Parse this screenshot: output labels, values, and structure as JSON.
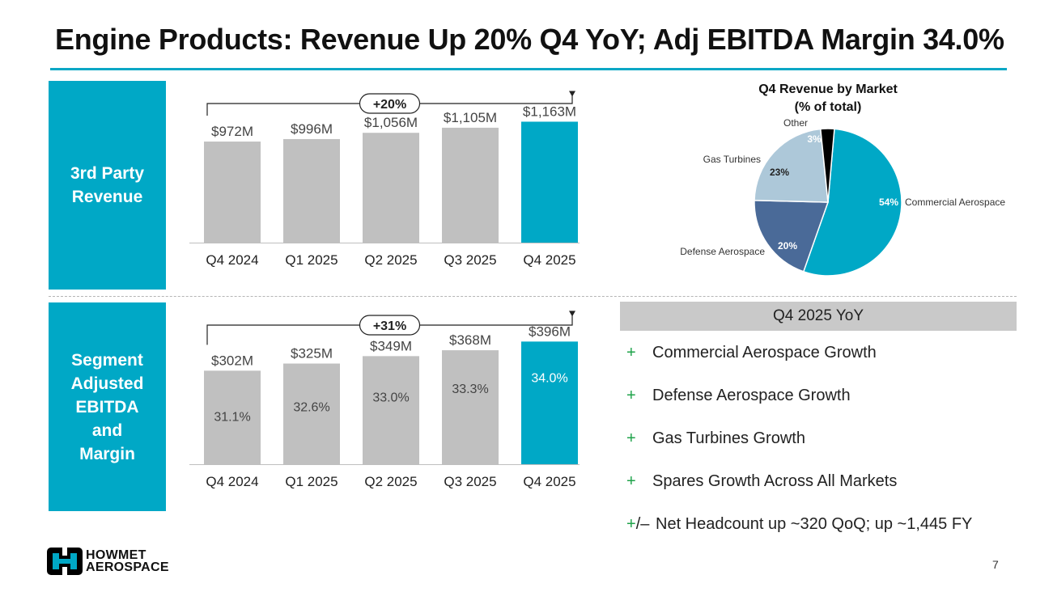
{
  "title": "Engine Products: Revenue Up 20% Q4 YoY; Adj EBITDA Margin 34.0%",
  "side_labels": {
    "revenue": [
      "3rd Party",
      "Revenue"
    ],
    "ebitda": [
      "Segment",
      "Adjusted",
      "EBITDA",
      "and",
      "Margin"
    ]
  },
  "chart_data": [
    {
      "type": "bar",
      "categories": [
        "Q4 2024",
        "Q1 2025",
        "Q2 2025",
        "Q3 2025",
        "Q4 2025"
      ],
      "values": [
        972,
        996,
        1056,
        1105,
        1163
      ],
      "value_labels": [
        "$972M",
        "$996M",
        "$1,056M",
        "$1,105M",
        "$1,163M"
      ],
      "highlight_index": 4,
      "annotation": "+20%",
      "ylim": [
        0,
        1400
      ]
    },
    {
      "type": "bar",
      "categories": [
        "Q4 2024",
        "Q1 2025",
        "Q2 2025",
        "Q3 2025",
        "Q4 2025"
      ],
      "values": [
        302,
        325,
        349,
        368,
        396
      ],
      "value_labels": [
        "$302M",
        "$325M",
        "$349M",
        "$368M",
        "$396M"
      ],
      "inner_labels": [
        "31.1%",
        "32.6%",
        "33.0%",
        "33.3%",
        "34.0%"
      ],
      "highlight_index": 4,
      "annotation": "+31%",
      "ylim": [
        0,
        470
      ]
    },
    {
      "type": "pie",
      "title": [
        "Q4 Revenue by Market",
        "(% of total)"
      ],
      "slices": [
        {
          "name": "Commercial Aerospace",
          "value": 54,
          "label": "54%",
          "color": "#00a8c6"
        },
        {
          "name": "Defense Aerospace",
          "value": 20,
          "label": "20%",
          "color": "#4a6a98"
        },
        {
          "name": "Gas Turbines",
          "value": 23,
          "label": "23%",
          "color": "#adc8d9"
        },
        {
          "name": "Other",
          "value": 3,
          "label": "3%",
          "color": "#000000"
        }
      ]
    }
  ],
  "colors": {
    "accent": "#00a8c6",
    "bar_gray": "#c0c0c0",
    "positive": "#1fa34a"
  },
  "yoy": {
    "header": "Q4 2025 YoY",
    "bullets": [
      {
        "marker": "+",
        "text": "Commercial Aerospace Growth"
      },
      {
        "marker": "+",
        "text": "Defense Aerospace Growth"
      },
      {
        "marker": "+",
        "text": "Gas Turbines Growth"
      },
      {
        "marker": "+",
        "text": "Spares Growth Across All Markets"
      }
    ],
    "mixed": {
      "plus": "+",
      "rest": "/– ",
      "text": "Net Headcount up ~320 QoQ; up ~1,445 FY"
    }
  },
  "logo": {
    "line1": "HOWMET",
    "line2": "AEROSPACE",
    "icon": "howmet-logo-icon"
  },
  "page_number": "7"
}
